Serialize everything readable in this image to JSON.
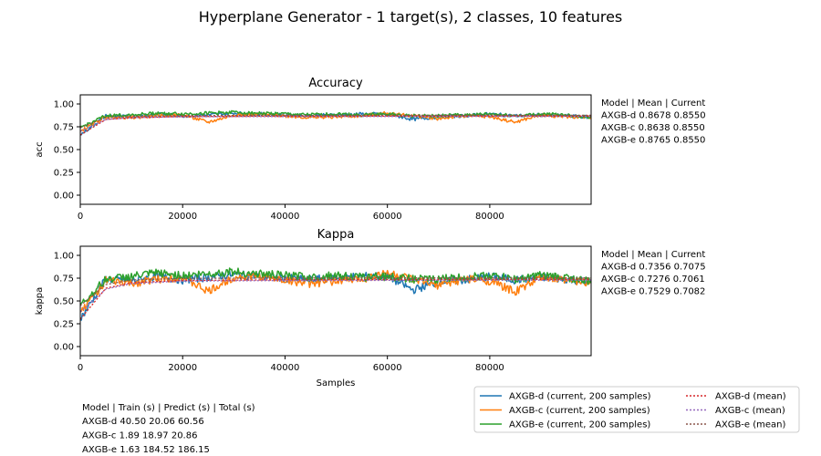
{
  "figure": {
    "title": "Hyperplane Generator - 1 target(s), 2 classes, 10 features"
  },
  "colors": {
    "AXGB-d": "#1f77b4",
    "AXGB-c": "#ff7f0e",
    "AXGB-e": "#2ca02c",
    "mean_d": "#d62728",
    "mean_c": "#9467bd",
    "mean_e": "#8c564b"
  },
  "chart_data": [
    {
      "type": "line",
      "title": "Accuracy",
      "xlabel": "",
      "ylabel": "acc",
      "xlim": [
        0,
        99800
      ],
      "ylim": [
        -0.1,
        1.1
      ],
      "xticks": [
        0,
        20000,
        40000,
        60000,
        80000
      ],
      "xtick_labels": [
        "0",
        "20000",
        "40000",
        "60000",
        "80000"
      ],
      "yticks": [
        0.0,
        0.25,
        0.5,
        0.75,
        1.0
      ],
      "ytick_labels": [
        "0.00",
        "0.25",
        "0.50",
        "0.75",
        "1.00"
      ],
      "grid": false,
      "series": [
        {
          "name": "AXGB-d  (current, 200 samples)",
          "x": [
            0,
            5000,
            10000,
            15000,
            20000,
            25000,
            30000,
            35000,
            40000,
            45000,
            50000,
            55000,
            60000,
            65000,
            70000,
            75000,
            80000,
            85000,
            90000,
            95000,
            99800
          ],
          "values": [
            0.66,
            0.87,
            0.86,
            0.89,
            0.87,
            0.88,
            0.9,
            0.89,
            0.88,
            0.87,
            0.88,
            0.89,
            0.89,
            0.83,
            0.86,
            0.87,
            0.89,
            0.87,
            0.88,
            0.87,
            0.855
          ]
        },
        {
          "name": "AXGB-c  (current, 200 samples)",
          "x": [
            0,
            5000,
            10000,
            15000,
            20000,
            25000,
            30000,
            35000,
            40000,
            45000,
            50000,
            55000,
            60000,
            65000,
            70000,
            75000,
            80000,
            85000,
            90000,
            95000,
            99800
          ],
          "values": [
            0.7,
            0.86,
            0.85,
            0.87,
            0.88,
            0.8,
            0.88,
            0.89,
            0.87,
            0.85,
            0.86,
            0.87,
            0.9,
            0.87,
            0.84,
            0.87,
            0.86,
            0.8,
            0.88,
            0.86,
            0.855
          ]
        },
        {
          "name": "AXGB-e  (current, 200 samples)",
          "x": [
            0,
            5000,
            10000,
            15000,
            20000,
            25000,
            30000,
            35000,
            40000,
            45000,
            50000,
            55000,
            60000,
            65000,
            70000,
            75000,
            80000,
            85000,
            90000,
            95000,
            99800
          ],
          "values": [
            0.74,
            0.87,
            0.88,
            0.9,
            0.89,
            0.9,
            0.91,
            0.9,
            0.89,
            0.88,
            0.89,
            0.88,
            0.89,
            0.87,
            0.87,
            0.88,
            0.89,
            0.87,
            0.89,
            0.88,
            0.855
          ]
        },
        {
          "name": "AXGB-d (mean)",
          "x": [
            0,
            5000,
            10000,
            20000,
            40000,
            60000,
            80000,
            99800
          ],
          "values": [
            0.66,
            0.83,
            0.85,
            0.862,
            0.866,
            0.867,
            0.868,
            0.8678
          ],
          "dashed": true
        },
        {
          "name": "AXGB-c (mean)",
          "x": [
            0,
            5000,
            10000,
            20000,
            40000,
            60000,
            80000,
            99800
          ],
          "values": [
            0.7,
            0.83,
            0.85,
            0.86,
            0.862,
            0.863,
            0.864,
            0.8638
          ],
          "dashed": true
        },
        {
          "name": "AXGB-e (mean)",
          "x": [
            0,
            5000,
            10000,
            20000,
            40000,
            60000,
            80000,
            99800
          ],
          "values": [
            0.74,
            0.85,
            0.865,
            0.873,
            0.875,
            0.876,
            0.877,
            0.8765
          ],
          "dashed": true
        }
      ],
      "table": {
        "header": "Model        |        Mean        |     Current",
        "rows": [
          "AXGB-d              0.8678              0.8550",
          "AXGB-c              0.8638              0.8550",
          "AXGB-e              0.8765              0.8550"
        ]
      }
    },
    {
      "type": "line",
      "title": "Kappa",
      "xlabel": "Samples",
      "ylabel": "kappa",
      "xlim": [
        0,
        99800
      ],
      "ylim": [
        -0.1,
        1.1
      ],
      "xticks": [
        0,
        20000,
        40000,
        60000,
        80000
      ],
      "xtick_labels": [
        "0",
        "20000",
        "40000",
        "60000",
        "80000"
      ],
      "yticks": [
        0.0,
        0.25,
        0.5,
        0.75,
        1.0
      ],
      "ytick_labels": [
        "0.00",
        "0.25",
        "0.50",
        "0.75",
        "1.00"
      ],
      "grid": false,
      "series": [
        {
          "name": "AXGB-d  (current, 200 samples)",
          "x": [
            0,
            5000,
            10000,
            15000,
            20000,
            25000,
            30000,
            35000,
            40000,
            45000,
            50000,
            55000,
            60000,
            65000,
            70000,
            75000,
            80000,
            85000,
            90000,
            95000,
            99800
          ],
          "values": [
            0.3,
            0.74,
            0.72,
            0.77,
            0.73,
            0.76,
            0.79,
            0.77,
            0.75,
            0.73,
            0.76,
            0.77,
            0.77,
            0.62,
            0.71,
            0.73,
            0.77,
            0.73,
            0.76,
            0.74,
            0.7075
          ]
        },
        {
          "name": "AXGB-c  (current, 200 samples)",
          "x": [
            0,
            5000,
            10000,
            15000,
            20000,
            25000,
            30000,
            35000,
            40000,
            45000,
            50000,
            55000,
            60000,
            65000,
            70000,
            75000,
            80000,
            85000,
            90000,
            95000,
            99800
          ],
          "values": [
            0.38,
            0.72,
            0.69,
            0.74,
            0.76,
            0.6,
            0.76,
            0.77,
            0.73,
            0.69,
            0.72,
            0.74,
            0.81,
            0.73,
            0.67,
            0.74,
            0.72,
            0.6,
            0.76,
            0.72,
            0.7061
          ]
        },
        {
          "name": "AXGB-e  (current, 200 samples)",
          "x": [
            0,
            5000,
            10000,
            15000,
            20000,
            25000,
            30000,
            35000,
            40000,
            45000,
            50000,
            55000,
            60000,
            65000,
            70000,
            75000,
            80000,
            85000,
            90000,
            95000,
            99800
          ],
          "values": [
            0.45,
            0.74,
            0.77,
            0.81,
            0.78,
            0.8,
            0.82,
            0.8,
            0.78,
            0.76,
            0.78,
            0.76,
            0.77,
            0.74,
            0.74,
            0.76,
            0.78,
            0.74,
            0.78,
            0.76,
            0.7082
          ]
        },
        {
          "name": "AXGB-d (mean)",
          "x": [
            0,
            5000,
            10000,
            20000,
            40000,
            60000,
            80000,
            99800
          ],
          "values": [
            0.3,
            0.64,
            0.7,
            0.725,
            0.732,
            0.734,
            0.736,
            0.7356
          ],
          "dashed": true
        },
        {
          "name": "AXGB-c (mean)",
          "x": [
            0,
            5000,
            10000,
            20000,
            40000,
            60000,
            80000,
            99800
          ],
          "values": [
            0.38,
            0.63,
            0.69,
            0.718,
            0.724,
            0.726,
            0.728,
            0.7276
          ],
          "dashed": true
        },
        {
          "name": "AXGB-e (mean)",
          "x": [
            0,
            5000,
            10000,
            20000,
            40000,
            60000,
            80000,
            99800
          ],
          "values": [
            0.45,
            0.68,
            0.73,
            0.748,
            0.752,
            0.753,
            0.753,
            0.7529
          ],
          "dashed": true
        }
      ],
      "table": {
        "header": "Model        |        Mean        |     Current",
        "rows": [
          "AXGB-d              0.7356              0.7075",
          "AXGB-c              0.7276              0.7061",
          "AXGB-e              0.7529              0.7082"
        ]
      }
    }
  ],
  "legend": {
    "left": [
      {
        "label": "AXGB-d  (current, 200 samples)",
        "color_key": "AXGB-d",
        "dashed": false
      },
      {
        "label": "AXGB-c  (current, 200 samples)",
        "color_key": "AXGB-c",
        "dashed": false
      },
      {
        "label": "AXGB-e  (current, 200 samples)",
        "color_key": "AXGB-e",
        "dashed": false
      }
    ],
    "right": [
      {
        "label": "AXGB-d (mean)",
        "color_key": "mean_d",
        "dashed": true
      },
      {
        "label": "AXGB-c (mean)",
        "color_key": "mean_c",
        "dashed": true
      },
      {
        "label": "AXGB-e (mean)",
        "color_key": "mean_e",
        "dashed": true
      }
    ]
  },
  "timing_table": {
    "header": "Model        |    Train (s)     |   Predict (s)    |    Total (s)",
    "rows": [
      "AXGB-d                40.50                20.06                 60.56",
      "AXGB-c                 1.89                18.97                 20.86",
      "AXGB-e                 1.63               184.52                186.15"
    ]
  }
}
